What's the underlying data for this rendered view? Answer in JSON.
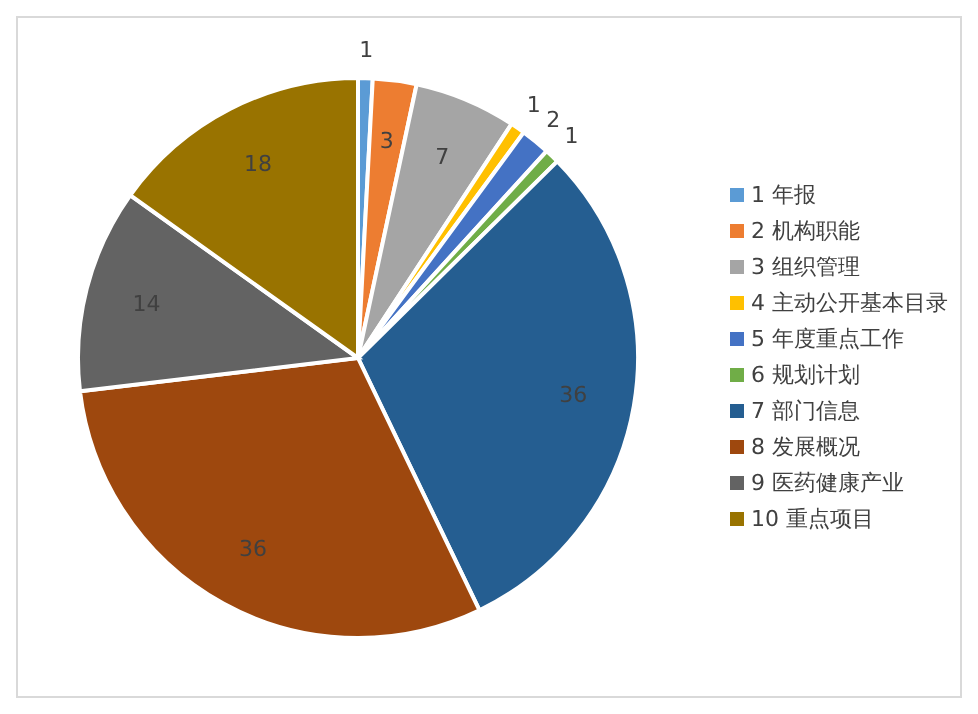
{
  "chart_data": {
    "type": "pie",
    "categories": [
      "1 年报",
      "2 机构职能",
      "3 组织管理",
      "4 主动公开基本目录",
      "5 年度重点工作",
      "6 规划计划",
      "7 部门信息",
      "8 发展概况",
      "9 医药健康产业",
      "10 重点项目"
    ],
    "values": [
      1,
      3,
      7,
      1,
      2,
      1,
      36,
      36,
      14,
      18
    ],
    "colors": [
      "#5b9bd5",
      "#ed7d31",
      "#a5a5a5",
      "#ffc000",
      "#4472c4",
      "#70ad47",
      "#255e91",
      "#9e480e",
      "#636363",
      "#997300"
    ],
    "data_labels": true,
    "legend": "right"
  }
}
